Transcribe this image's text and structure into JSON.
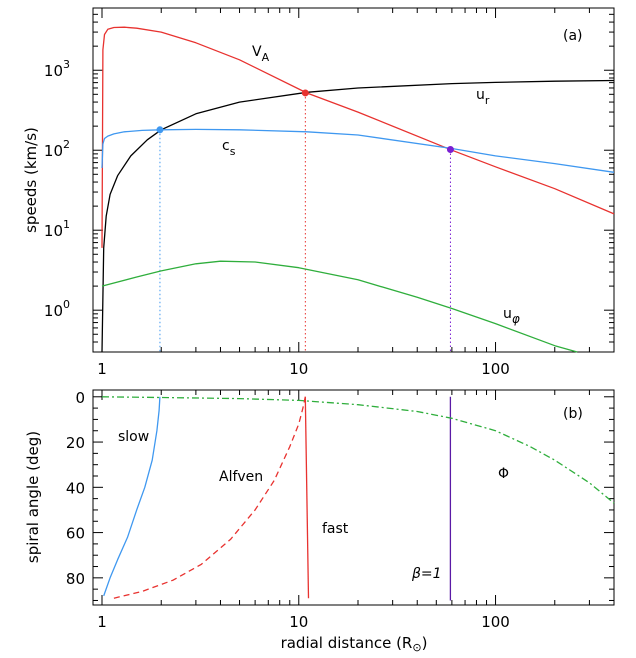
{
  "chart_data": [
    {
      "type": "line",
      "panel_label": "(a)",
      "xlabel": "",
      "ylabel": "speeds (km/s)",
      "xscale": "log",
      "yscale": "log",
      "xlim": [
        0.9,
        400
      ],
      "ylim": [
        0.3,
        6000
      ],
      "x_ticks": [
        {
          "value": 1,
          "label": "1"
        },
        {
          "value": 10,
          "label": "10"
        },
        {
          "value": 100,
          "label": "100"
        }
      ],
      "y_ticks": [
        {
          "value": 1,
          "base": "10",
          "exp": "0"
        },
        {
          "value": 10,
          "base": "10",
          "exp": "1"
        },
        {
          "value": 100,
          "base": "10",
          "exp": "2"
        },
        {
          "value": 1000,
          "base": "10",
          "exp": "3"
        }
      ],
      "series": [
        {
          "name": "V_A",
          "label_main": "V",
          "label_sub": "A",
          "color": "#e8322f",
          "x": [
            1.0,
            1.01,
            1.03,
            1.07,
            1.15,
            1.3,
            1.5,
            2.0,
            3.0,
            5.0,
            11.0,
            20.0,
            60.0,
            100.0,
            200.0,
            400.0
          ],
          "y": [
            6,
            1800,
            2800,
            3250,
            3420,
            3450,
            3350,
            3000,
            2200,
            1350,
            520,
            300,
            100,
            62,
            33,
            16
          ]
        },
        {
          "name": "u_r",
          "label_main": "u",
          "label_sub": "r",
          "color": "#000000",
          "x": [
            1.0,
            1.02,
            1.05,
            1.1,
            1.2,
            1.4,
            1.7,
            2.0,
            3.0,
            5.0,
            11.0,
            20.0,
            60.0,
            100.0,
            200.0,
            400.0
          ],
          "y": [
            0.3,
            6,
            15,
            28,
            48,
            85,
            135,
            180,
            285,
            400,
            530,
            600,
            680,
            705,
            730,
            745
          ]
        },
        {
          "name": "c_s",
          "label_main": "c",
          "label_sub": "s",
          "color": "#3f98f0",
          "x": [
            1.0,
            1.01,
            1.03,
            1.07,
            1.15,
            1.3,
            1.6,
            2.0,
            3.0,
            5.0,
            11.0,
            20.0,
            60.0,
            100.0,
            200.0,
            400.0
          ],
          "y": [
            60,
            120,
            140,
            150,
            160,
            170,
            177,
            180,
            182,
            180,
            170,
            155,
            105,
            85,
            68,
            53
          ]
        },
        {
          "name": "u_phi",
          "label_main": "u",
          "label_sub": "φ",
          "color": "#2fae3c",
          "x": [
            1.0,
            1.5,
            2.0,
            3.0,
            4.0,
            6.0,
            10.0,
            20.0,
            40.0,
            60.0,
            100.0,
            200.0,
            260.0
          ],
          "y": [
            2.0,
            2.6,
            3.1,
            3.8,
            4.1,
            4.0,
            3.4,
            2.4,
            1.45,
            1.05,
            0.68,
            0.36,
            0.28
          ]
        }
      ],
      "critical_points": [
        {
          "name": "slow",
          "x": 1.97,
          "y": 180,
          "color": "#3f98f0"
        },
        {
          "name": "alfven",
          "x": 10.8,
          "y": 520,
          "color": "#e8322f"
        },
        {
          "name": "beta1",
          "x": 59,
          "y": 102,
          "color": "#7a1fd2"
        }
      ]
    },
    {
      "type": "line",
      "panel_label": "(b)",
      "xlabel": "radial distance (R",
      "xlabel_symbol": "⊙",
      "xlabel_close": ")",
      "ylabel": "spiral angle (deg)",
      "xscale": "log",
      "xlim": [
        0.9,
        400
      ],
      "ylim": [
        92,
        -3
      ],
      "x_ticks": [
        {
          "value": 1,
          "label": "1"
        },
        {
          "value": 10,
          "label": "10"
        },
        {
          "value": 100,
          "label": "100"
        }
      ],
      "y_ticks": [
        {
          "value": 0,
          "label": "0"
        },
        {
          "value": 20,
          "label": "20"
        },
        {
          "value": 40,
          "label": "40"
        },
        {
          "value": 60,
          "label": "60"
        },
        {
          "value": 80,
          "label": "80"
        }
      ],
      "series": [
        {
          "name": "slow",
          "label": "slow",
          "color": "#3f98f0",
          "dash": "solid",
          "x": [
            1.02,
            1.1,
            1.2,
            1.35,
            1.5,
            1.65,
            1.8,
            1.9,
            1.95,
            1.97
          ],
          "y": [
            88,
            80,
            72,
            62,
            50,
            40,
            28,
            15,
            6,
            0
          ]
        },
        {
          "name": "Alfven",
          "label": "Alfven",
          "color": "#e8322f",
          "dash": "dashed",
          "x": [
            1.15,
            1.6,
            2.3,
            3.2,
            4.5,
            6.0,
            7.5,
            9.0,
            10.0,
            10.5,
            10.8
          ],
          "y": [
            89,
            86,
            81,
            74,
            63,
            50,
            37,
            22,
            12,
            5,
            0
          ]
        },
        {
          "name": "fast",
          "label": "fast",
          "color": "#e8322f",
          "dash": "solid",
          "x": [
            10.8,
            11.2
          ],
          "y": [
            0,
            89
          ]
        },
        {
          "name": "beta1",
          "label": "β=1",
          "color": "#5a1aa6",
          "dash": "solid",
          "x": [
            59,
            59
          ],
          "y": [
            0,
            90
          ]
        },
        {
          "name": "Phi",
          "label": "Φ",
          "color": "#2fae3c",
          "dash": "dashdot",
          "x": [
            1.0,
            2.0,
            5.0,
            10.0,
            20.0,
            40.0,
            60.0,
            100.0,
            150.0,
            200.0,
            300.0,
            400.0
          ],
          "y": [
            0,
            0.3,
            0.8,
            1.6,
            3.5,
            6.5,
            9.5,
            15,
            22,
            28,
            38,
            47
          ]
        }
      ]
    }
  ]
}
